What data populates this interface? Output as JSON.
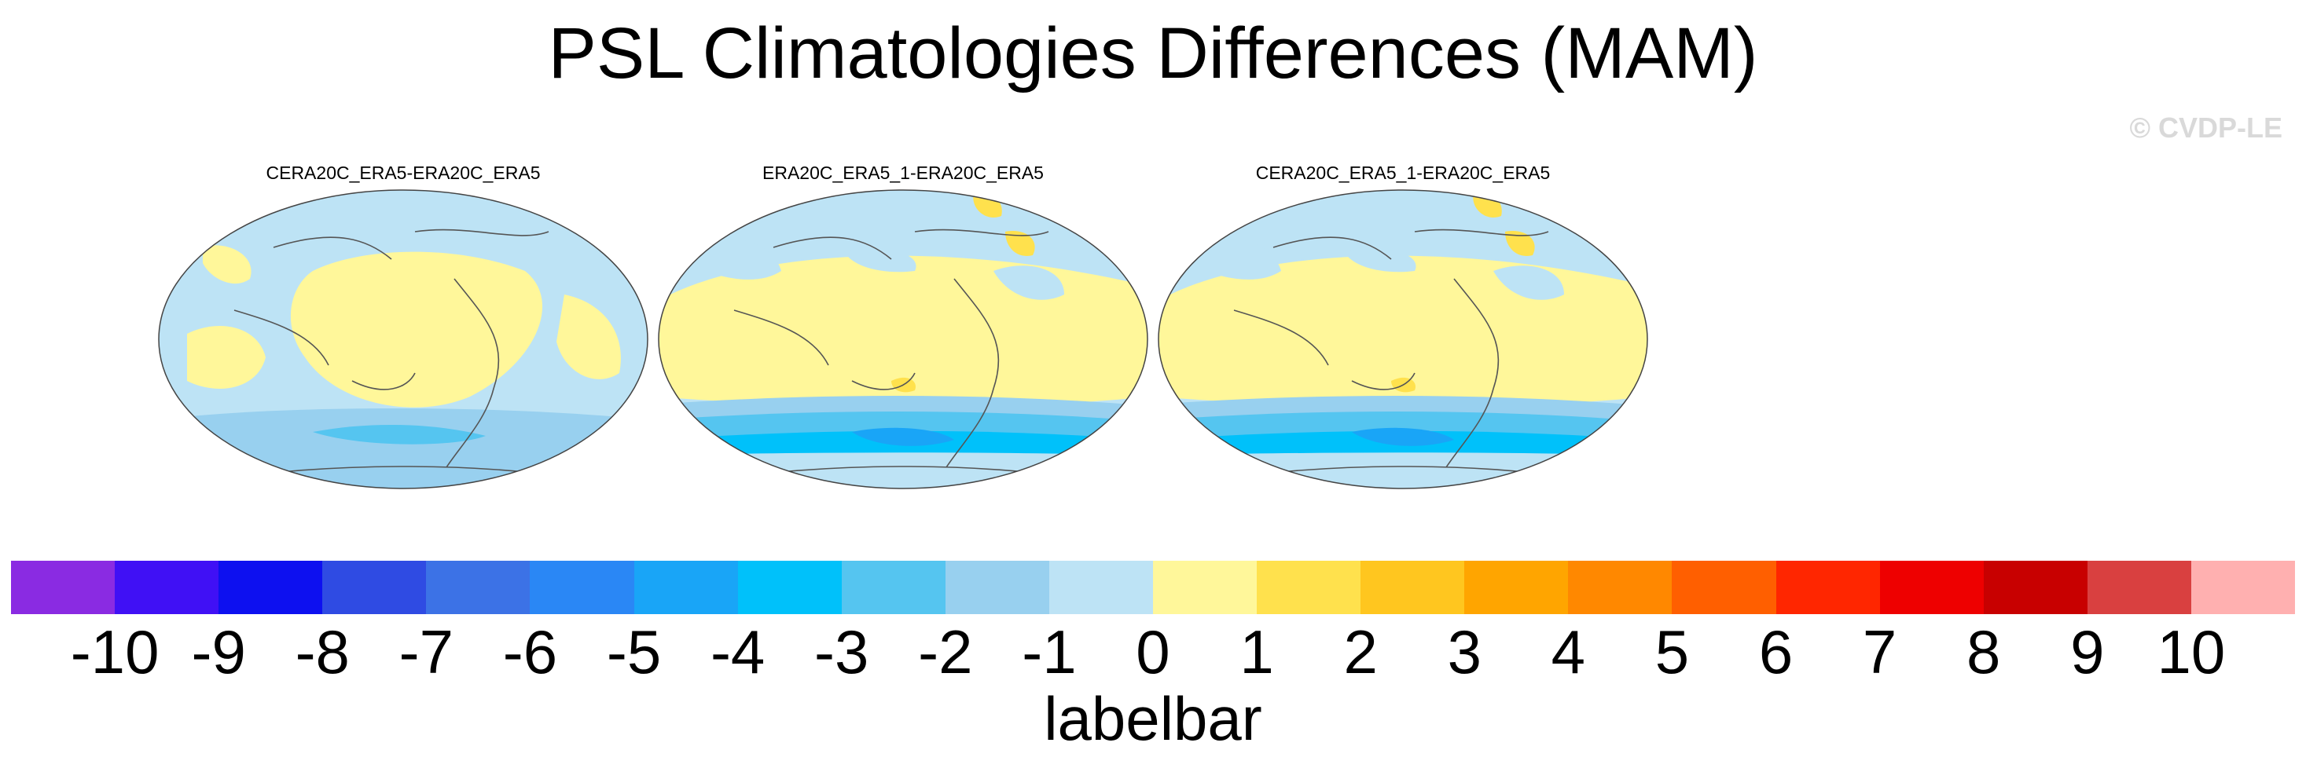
{
  "title": "PSL Climatologies Differences (MAM)",
  "watermark": "© CVDP-LE",
  "chart_data": {
    "type": "heatmap",
    "title": "PSL Climatologies Differences (MAM)",
    "panels": [
      {
        "title": "CERA20C_ERA5-ERA20C_ERA5"
      },
      {
        "title": "ERA20C_ERA5_1-ERA20C_ERA5"
      },
      {
        "title": "CERA20C_ERA5_1-ERA20C_ERA5"
      }
    ],
    "colorbar": {
      "label": "labelbar",
      "tick_labels": [
        "-10",
        "-9",
        "-8",
        "-7",
        "-6",
        "-5",
        "-4",
        "-3",
        "-2",
        "-1",
        "0",
        "1",
        "2",
        "3",
        "4",
        "5",
        "6",
        "7",
        "8",
        "9",
        "10"
      ],
      "colors": [
        "#8a2be2",
        "#4010f5",
        "#0d10f0",
        "#2f4be3",
        "#3c72e6",
        "#2a87f5",
        "#19a5f7",
        "#00c1fa",
        "#55c5f0",
        "#98d0ef",
        "#bde3f5",
        "#fff79a",
        "#ffe14d",
        "#ffc61f",
        "#ffa500",
        "#ff8800",
        "#ff5f00",
        "#ff2600",
        "#ee0000",
        "#c80000",
        "#d94040",
        "#ffb0b0"
      ]
    }
  }
}
